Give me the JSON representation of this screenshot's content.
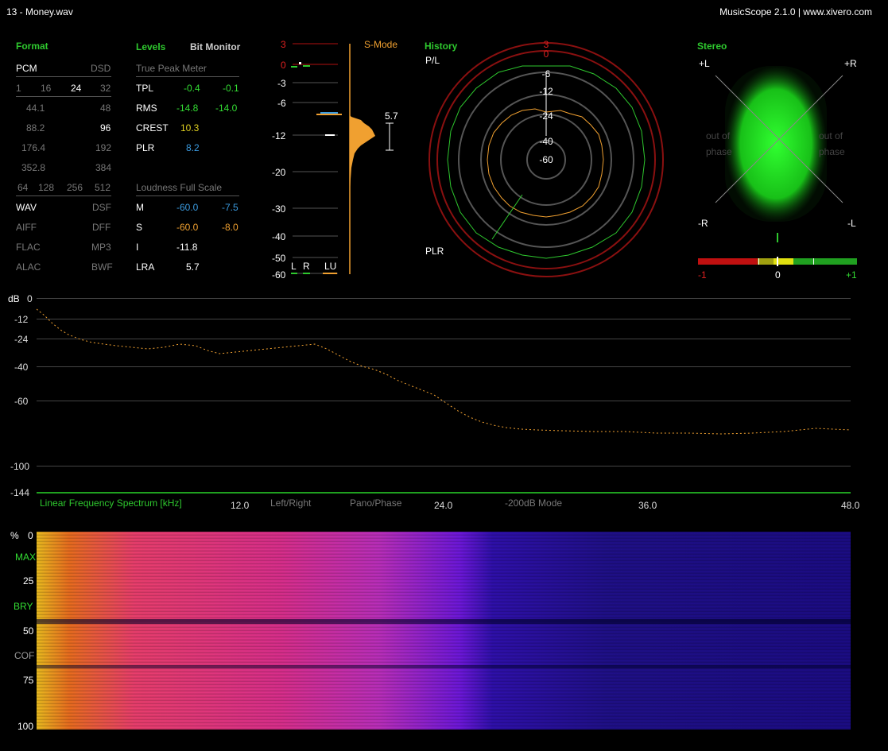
{
  "window": {
    "file": "13 - Money.wav",
    "app": "MusicScope 2.1.0 | www.xivero.com"
  },
  "format": {
    "title": "Format",
    "pcm": "PCM",
    "dsd": "DSD",
    "bits": [
      "1",
      "16",
      "24",
      "32"
    ],
    "rates": [
      [
        "44.1",
        "48"
      ],
      [
        "88.2",
        "96"
      ],
      [
        "176.4",
        "192"
      ],
      [
        "352.8",
        "384"
      ]
    ],
    "dsd_rates": [
      "64",
      "128",
      "256",
      "512"
    ],
    "containers": [
      [
        "WAV",
        "DSF"
      ],
      [
        "AIFF",
        "DFF"
      ],
      [
        "FLAC",
        "MP3"
      ],
      [
        "ALAC",
        "BWF"
      ]
    ]
  },
  "levels": {
    "title": "Levels",
    "bit_monitor": "Bit Monitor",
    "true_peak": "True Peak Meter",
    "rows": [
      {
        "label": "TPL",
        "a": "-0.4",
        "b": "-0.1"
      },
      {
        "label": "RMS",
        "a": "-14.8",
        "b": "-14.0"
      },
      {
        "label": "CREST",
        "a": "10.3"
      },
      {
        "label": "PLR",
        "a": "8.2"
      }
    ],
    "loudness_title": "Loudness Full Scale",
    "loud_rows": [
      {
        "label": "M",
        "a": "-60.0",
        "b": "-7.5"
      },
      {
        "label": "S",
        "a": "-60.0",
        "b": "-8.0"
      },
      {
        "label": "I",
        "a": "-11.8"
      },
      {
        "label": "LRA",
        "a": "5.7"
      }
    ]
  },
  "meter": {
    "scale": [
      "3",
      "0",
      "-3",
      "-6",
      "-12",
      "-20",
      "-30",
      "-40",
      "-50",
      "-60"
    ],
    "mode": "S-Mode",
    "lra": "5.7",
    "foot": [
      "L",
      "R",
      "LU"
    ]
  },
  "history": {
    "title": "History",
    "pl": "P/L",
    "plr": "PLR",
    "rings": [
      "3",
      "0",
      "-6",
      "-12",
      "-24",
      "-40",
      "-60"
    ]
  },
  "stereo": {
    "title": "Stereo",
    "corners": [
      "+L",
      "+R",
      "-R",
      "-L"
    ],
    "ghost": [
      "out of",
      "phase",
      "out of",
      "phase"
    ],
    "corr_scale": [
      "-1",
      "0",
      "+1"
    ]
  },
  "spectrum": {
    "db": "dB",
    "y_ticks": [
      "0",
      "-12",
      "-24",
      "-40",
      "-60",
      "-100",
      "-144"
    ],
    "x_ticks": [
      "12.0",
      "24.0",
      "36.0",
      "48.0"
    ],
    "title": "Linear Frequency Spectrum [kHz]",
    "tabs": [
      "Left/Right",
      "Pano/Phase",
      "-200dB Mode"
    ]
  },
  "spectrogram": {
    "labels": [
      "%",
      "0",
      "MAX",
      "25",
      "BRY",
      "50",
      "COF",
      "75",
      "100"
    ]
  },
  "colors": {
    "accent": "#2ec82e",
    "orange": "#f0a030",
    "blue": "#3b9be0",
    "red": "#e02020"
  }
}
